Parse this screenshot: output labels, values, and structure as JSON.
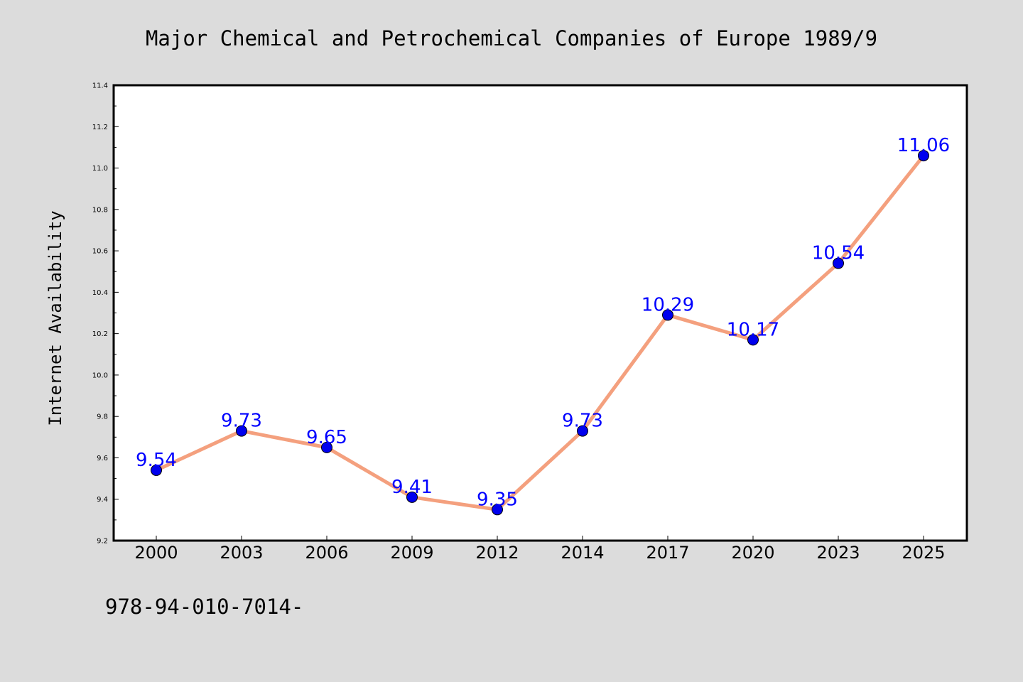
{
  "chart_data": {
    "type": "line",
    "title": "Major Chemical and Petrochemical Companies of Europe 1989/9",
    "xlabel": "",
    "ylabel": "Internet Availability",
    "categories": [
      "2000",
      "2003",
      "2006",
      "2009",
      "2012",
      "2014",
      "2017",
      "2020",
      "2023",
      "2025"
    ],
    "series": [
      {
        "values": [
          9.54,
          9.73,
          9.65,
          9.41,
          9.35,
          9.73,
          10.29,
          10.17,
          10.54,
          11.06
        ],
        "data_labels": [
          "9.54",
          "9.73",
          "9.65",
          "9.41",
          "9.35",
          "9.73",
          "10.29",
          "10.17",
          "10.54",
          "11.06"
        ]
      }
    ],
    "ylim": [
      9.2,
      11.4
    ],
    "yticks": [
      "9.2",
      "9.4",
      "9.6",
      "9.8",
      "10.0",
      "10.2",
      "10.4",
      "10.6",
      "10.8",
      "11.0",
      "11.2",
      "11.4"
    ],
    "grid": false,
    "legend": "none",
    "footnote": "978-94-010-7014-",
    "colors": {
      "background": "#dcdcdc",
      "plot_background": "#ffffff",
      "line": "#f4a07e",
      "marker": "#0000ee",
      "data_label": "#0000ff",
      "axes": "#000000"
    }
  }
}
